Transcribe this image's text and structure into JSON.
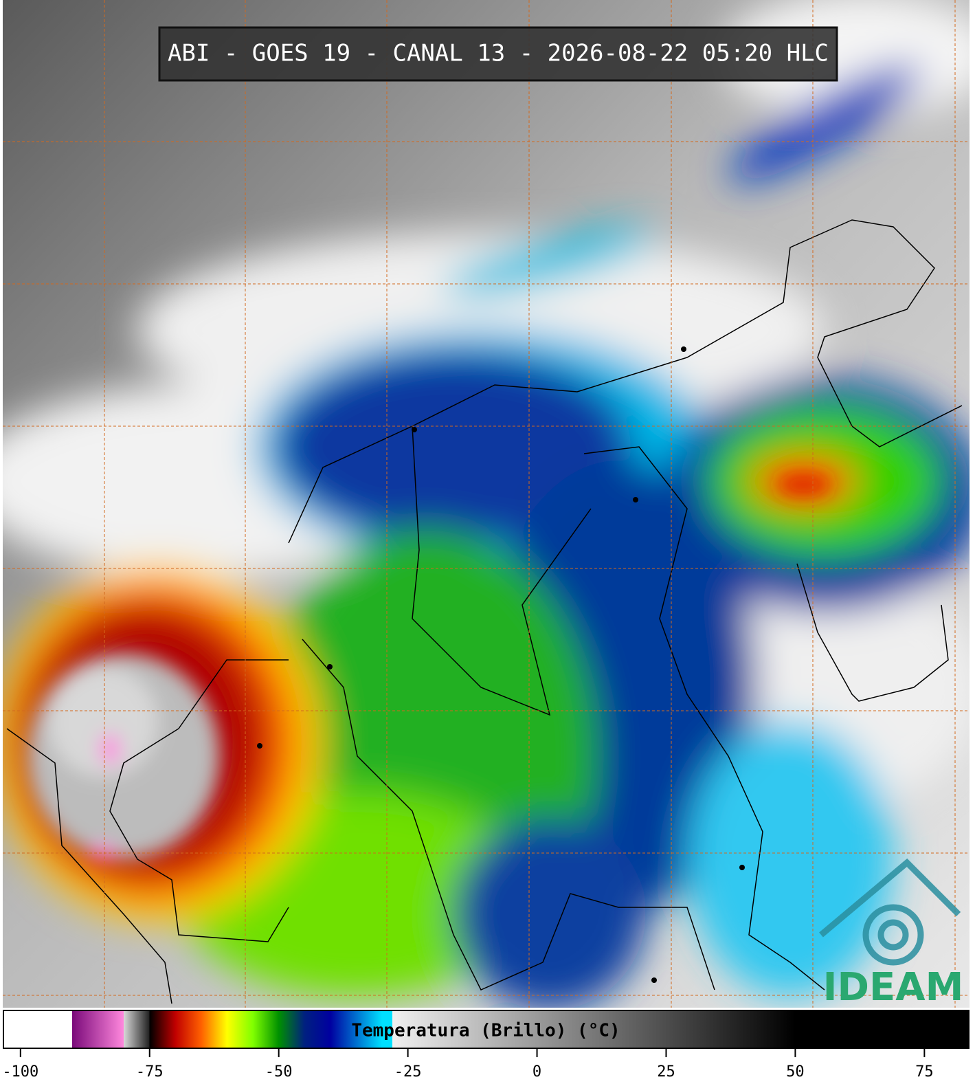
{
  "title": "ABI - GOES 19 - CANAL 13 - 2026-08-22 05:20 HLC",
  "logo": "IDEAM",
  "colorbar": {
    "label": "Temperatura (Brillo) (°C)",
    "xlim": [
      -103.3,
      83.6
    ],
    "xticks": [
      -100,
      -75,
      -50,
      -25,
      0,
      25,
      50,
      75
    ],
    "colorscale": [
      [
        -90,
        "#ffffff"
      ],
      [
        -90,
        "#7a0a7a"
      ],
      [
        -80,
        "#ff88dd"
      ],
      [
        -80,
        "#d8d8d8"
      ],
      [
        -75,
        "#202020"
      ],
      [
        -75,
        "#000000"
      ],
      [
        -70,
        "#c00000"
      ],
      [
        -65,
        "#ff6000"
      ],
      [
        -60,
        "#ffff00"
      ],
      [
        -55,
        "#80ff00"
      ],
      [
        -50,
        "#009000"
      ],
      [
        -45,
        "#002080"
      ],
      [
        -40,
        "#0000a0"
      ],
      [
        -30,
        "#00e0ff"
      ],
      [
        -28,
        "#00e0ff"
      ],
      [
        -28,
        "#f0f0f0"
      ],
      [
        50,
        "#000000"
      ]
    ]
  }
}
